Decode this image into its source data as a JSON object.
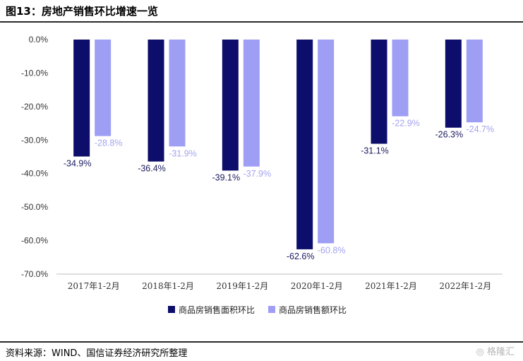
{
  "page": {
    "title": "图13：房地产销售环比增速一览",
    "source": "资料来源：WIND、国信证券经济研究所整理",
    "watermark": "格隆汇"
  },
  "colors": {
    "series1": "#0d0d6b",
    "series2": "#9e9ef5",
    "label1": "#1a1a5e",
    "label2": "#a3a3f0"
  },
  "chart_data": {
    "type": "bar",
    "title": "",
    "xlabel": "",
    "ylabel": "",
    "ylim": [
      -70,
      0
    ],
    "yticks": [
      0,
      -10,
      -20,
      -30,
      -40,
      -50,
      -60,
      -70
    ],
    "ytick_labels": [
      "0.0%",
      "-10.0%",
      "-20.0%",
      "-30.0%",
      "-40.0%",
      "-50.0%",
      "-60.0%",
      "-70.0%"
    ],
    "categories": [
      "2017年1-2月",
      "2018年1-2月",
      "2019年1-2月",
      "2020年1-2月",
      "2021年1-2月",
      "2022年1-2月"
    ],
    "series": [
      {
        "name": "商品房销售面积环比",
        "values": [
          -34.9,
          -36.4,
          -39.1,
          -62.6,
          -31.1,
          -26.3
        ],
        "labels": [
          "-34.9%",
          "-36.4%",
          "-39.1%",
          "-62.6%",
          "-31.1%",
          "-26.3%"
        ]
      },
      {
        "name": "商品房销售额环比",
        "values": [
          -28.8,
          -31.9,
          -37.9,
          -60.8,
          -22.9,
          -24.7
        ],
        "labels": [
          "-28.8%",
          "-31.9%",
          "-37.9%",
          "-60.8%",
          "-22.9%",
          "-24.7%"
        ]
      }
    ],
    "grid": false,
    "legend": "bottom-center"
  }
}
